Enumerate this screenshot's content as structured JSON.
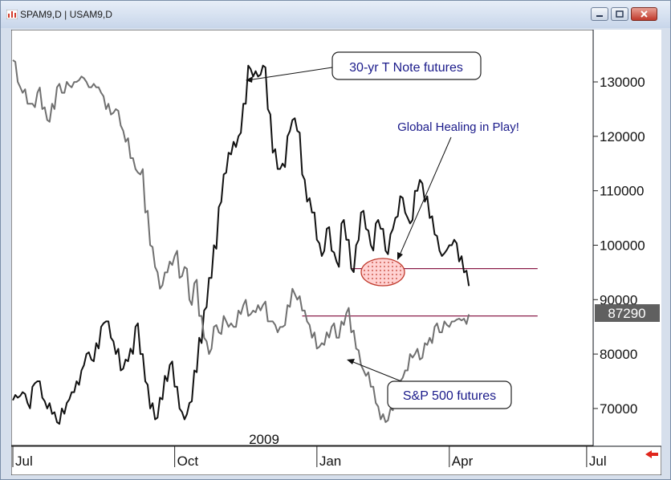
{
  "window": {
    "title": "SPAM9,D  |  USAM9,D"
  },
  "chart_data": {
    "type": "line",
    "x_ticks": [
      "Jul",
      "Oct",
      "Jan",
      "Apr",
      "Jul"
    ],
    "year_label": "2009",
    "y_ticks": [
      70000,
      80000,
      90000,
      100000,
      110000,
      120000,
      130000
    ],
    "y_tick_labels": [
      "70000",
      "80000",
      "90000",
      "100000",
      "110000",
      "120000",
      "130000"
    ],
    "ylim": [
      63500,
      139000
    ],
    "last_value_label": "87290",
    "last_value": 87290,
    "series": [
      {
        "name": "30-yr T Note futures",
        "color": "#111111",
        "points": [
          [
            0,
            71.5
          ],
          [
            1,
            72
          ],
          [
            2,
            73
          ],
          [
            3,
            71
          ],
          [
            4,
            74
          ],
          [
            5,
            75
          ],
          [
            6,
            72
          ],
          [
            7,
            70
          ],
          [
            8,
            69
          ],
          [
            9,
            67.5
          ],
          [
            10,
            70
          ],
          [
            11,
            71
          ],
          [
            12,
            73
          ],
          [
            13,
            75
          ],
          [
            14,
            77
          ],
          [
            15,
            80
          ],
          [
            16,
            79
          ],
          [
            17,
            82
          ],
          [
            18,
            85
          ],
          [
            19,
            86
          ],
          [
            20,
            83
          ],
          [
            21,
            80
          ],
          [
            22,
            77
          ],
          [
            23,
            79
          ],
          [
            24,
            81
          ],
          [
            25,
            85
          ],
          [
            26,
            80
          ],
          [
            27,
            75
          ],
          [
            28,
            70
          ],
          [
            29,
            68
          ],
          [
            30,
            72
          ],
          [
            31,
            76
          ],
          [
            32,
            78
          ],
          [
            33,
            74
          ],
          [
            34,
            70
          ],
          [
            35,
            68
          ],
          [
            36,
            71
          ],
          [
            37,
            77
          ],
          [
            38,
            83
          ],
          [
            39,
            88
          ],
          [
            40,
            94
          ],
          [
            41,
            100
          ],
          [
            42,
            107
          ],
          [
            43,
            113
          ],
          [
            44,
            117
          ],
          [
            45,
            119
          ],
          [
            46,
            120
          ],
          [
            47,
            126
          ],
          [
            48,
            133
          ],
          [
            49,
            131
          ],
          [
            50,
            131
          ],
          [
            51,
            133
          ],
          [
            52,
            125
          ],
          [
            53,
            117
          ],
          [
            54,
            114
          ],
          [
            55,
            115
          ],
          [
            56,
            120
          ],
          [
            57,
            123
          ],
          [
            58,
            121
          ],
          [
            59,
            113
          ],
          [
            60,
            108
          ],
          [
            61,
            106
          ],
          [
            62,
            101
          ],
          [
            63,
            98
          ],
          [
            64,
            103
          ],
          [
            65,
            99
          ],
          [
            66,
            97
          ],
          [
            67,
            104
          ],
          [
            68,
            101
          ],
          [
            69,
            95.7
          ],
          [
            70,
            100
          ],
          [
            71,
            106
          ],
          [
            72,
            103
          ],
          [
            73,
            100
          ],
          [
            74,
            104
          ],
          [
            75,
            103
          ],
          [
            76,
            99
          ],
          [
            77,
            102
          ],
          [
            78,
            105
          ],
          [
            79,
            109
          ],
          [
            80,
            106
          ],
          [
            81,
            104
          ],
          [
            82,
            110
          ],
          [
            83,
            112
          ],
          [
            84,
            108
          ],
          [
            85,
            105
          ],
          [
            86,
            102
          ],
          [
            87,
            99
          ],
          [
            88,
            98.5
          ],
          [
            89,
            100
          ],
          [
            90,
            101
          ],
          [
            91,
            97
          ],
          [
            92,
            95
          ],
          [
            93,
            92.5
          ]
        ]
      },
      {
        "name": "S&P 500 futures",
        "color": "#707070",
        "points": [
          [
            0,
            134
          ],
          [
            1,
            130
          ],
          [
            2,
            128
          ],
          [
            3,
            126
          ],
          [
            4,
            126
          ],
          [
            5,
            128
          ],
          [
            6,
            125
          ],
          [
            7,
            123
          ],
          [
            8,
            126
          ],
          [
            9,
            129
          ],
          [
            10,
            128
          ],
          [
            11,
            130
          ],
          [
            12,
            129
          ],
          [
            13,
            130
          ],
          [
            14,
            131
          ],
          [
            15,
            130
          ],
          [
            16,
            129
          ],
          [
            17,
            129
          ],
          [
            18,
            128
          ],
          [
            19,
            125
          ],
          [
            20,
            124
          ],
          [
            21,
            125
          ],
          [
            22,
            122
          ],
          [
            23,
            119
          ],
          [
            24,
            116
          ],
          [
            25,
            114
          ],
          [
            26,
            113
          ],
          [
            27,
            106
          ],
          [
            28,
            100
          ],
          [
            29,
            96
          ],
          [
            30,
            92
          ],
          [
            31,
            95
          ],
          [
            32,
            97
          ],
          [
            33,
            98
          ],
          [
            34,
            94
          ],
          [
            35,
            96
          ],
          [
            36,
            90
          ],
          [
            37,
            93
          ],
          [
            38,
            87
          ],
          [
            39,
            83
          ],
          [
            40,
            80
          ],
          [
            41,
            85
          ],
          [
            42,
            84
          ],
          [
            43,
            87
          ],
          [
            44,
            85
          ],
          [
            45,
            85
          ],
          [
            46,
            88
          ],
          [
            47,
            89
          ],
          [
            48,
            87
          ],
          [
            49,
            88
          ],
          [
            50,
            89
          ],
          [
            51,
            89
          ],
          [
            52,
            86
          ],
          [
            53,
            86
          ],
          [
            54,
            84
          ],
          [
            55,
            85
          ],
          [
            56,
            89
          ],
          [
            57,
            92
          ],
          [
            58,
            90
          ],
          [
            59,
            88
          ],
          [
            60,
            86
          ],
          [
            61,
            83
          ],
          [
            62,
            81
          ],
          [
            63,
            82
          ],
          [
            64,
            84
          ],
          [
            65,
            85
          ],
          [
            66,
            83
          ],
          [
            67,
            86
          ],
          [
            68,
            87.5
          ],
          [
            69,
            84
          ],
          [
            70,
            81
          ],
          [
            71,
            78
          ],
          [
            72,
            76
          ],
          [
            73,
            74
          ],
          [
            74,
            71
          ],
          [
            75,
            68
          ],
          [
            76,
            67.5
          ],
          [
            77,
            70
          ],
          [
            78,
            73
          ],
          [
            79,
            75
          ],
          [
            80,
            77
          ],
          [
            81,
            80
          ],
          [
            82,
            80
          ],
          [
            83,
            79
          ],
          [
            84,
            82
          ],
          [
            85,
            83
          ],
          [
            86,
            85
          ],
          [
            87,
            84
          ],
          [
            88,
            86
          ],
          [
            89,
            85
          ],
          [
            90,
            86
          ],
          [
            91,
            86.5
          ],
          [
            92,
            86.5
          ],
          [
            93,
            87.3
          ]
        ]
      }
    ],
    "x_tick_positions": [
      0,
      33,
      62,
      89,
      117
    ],
    "x_max": 118,
    "annotations": [
      {
        "text": "30-yr T Note futures"
      },
      {
        "text": "Global Healing in Play!"
      },
      {
        "text": "S&P 500 futures"
      }
    ],
    "support_lines": [
      {
        "value": 95.7,
        "from": 69,
        "to": 107
      },
      {
        "value": 87,
        "from": 59,
        "to": 107
      }
    ],
    "grid": false
  }
}
